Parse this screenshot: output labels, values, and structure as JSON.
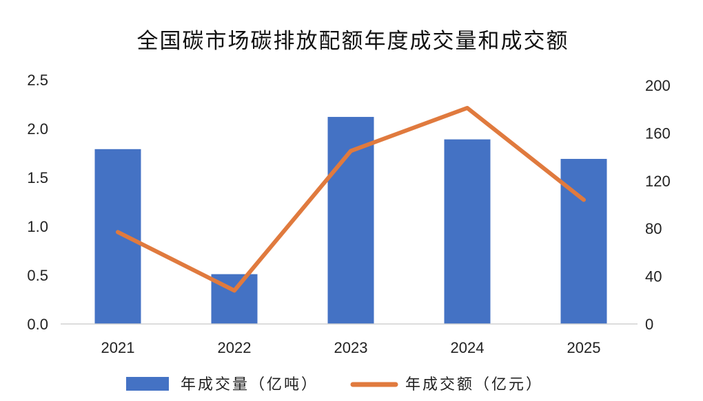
{
  "chart_data": {
    "type": "bar",
    "title": "全国碳市场碳排放配额年度成交量和成交额",
    "categories": [
      "2021",
      "2022",
      "2023",
      "2024",
      "2025"
    ],
    "series": [
      {
        "name": "年成交量（亿吨）",
        "type": "bar",
        "axis": "left",
        "color": "#4472C4",
        "values": [
          1.79,
          0.51,
          2.12,
          1.89,
          1.69
        ]
      },
      {
        "name": "年成交额（亿元）",
        "type": "line",
        "axis": "right",
        "color": "#E07A3E",
        "values": [
          77,
          28,
          145,
          181,
          104
        ]
      }
    ],
    "y_left": {
      "min": 0,
      "max": 2.5,
      "ticks": [
        "0.0",
        "0.5",
        "1.0",
        "1.5",
        "2.0",
        "2.5"
      ]
    },
    "y_right": {
      "min": 0,
      "max": 200,
      "ticks": [
        "0",
        "40",
        "80",
        "120",
        "160",
        "200"
      ]
    },
    "grid": false,
    "legend_position": "bottom"
  }
}
